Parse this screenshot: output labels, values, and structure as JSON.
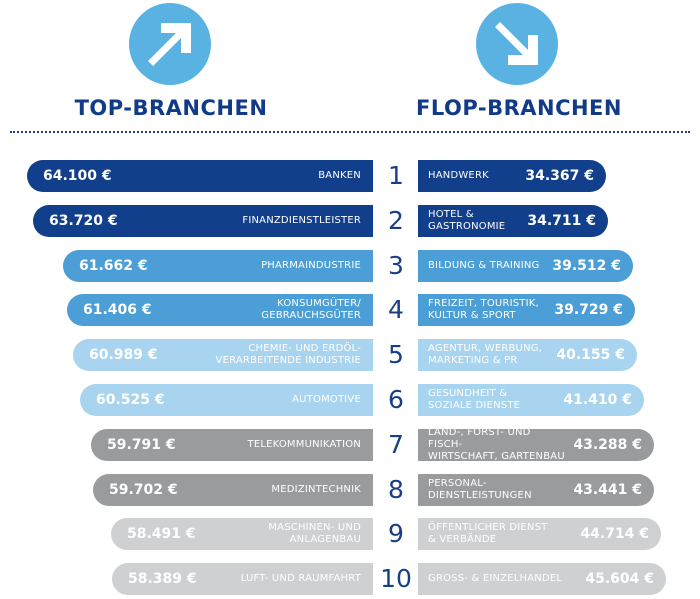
{
  "colors": {
    "arrow": "#5ab2e3",
    "heading": "#123b87",
    "divider": "#1b3f82",
    "rank": "#183f86",
    "shades": [
      "#123f8c",
      "#123f8c",
      "#4b9fd6",
      "#4b9fd6",
      "#a8d4ef",
      "#a8d4ef",
      "#9a9b9d",
      "#9a9b9d",
      "#cfd0d2",
      "#cfd0d2"
    ]
  },
  "top": {
    "icon": "arrow-up-right-icon",
    "title": "TOP-BRANCHEN"
  },
  "flop": {
    "icon": "arrow-down-right-icon",
    "title": "FLOP-BRANCHEN"
  },
  "chart_data": {
    "type": "bar",
    "currency": "€",
    "ranks": [
      "1",
      "2",
      "3",
      "4",
      "5",
      "6",
      "7",
      "8",
      "9",
      "10"
    ],
    "series": [
      {
        "name": "TOP-BRANCHEN",
        "categories": [
          [
            "BANKEN"
          ],
          [
            "FINANZDIENSTLEISTER"
          ],
          [
            "PHARMAINDUSTRIE"
          ],
          [
            "KONSUMGÜTER/",
            "GEBRAUCHSGÜTER"
          ],
          [
            "CHEMIE- UND ERDÖL-",
            "VERARBEITENDE INDUSTRIE"
          ],
          [
            "AUTOMOTIVE"
          ],
          [
            "TELEKOMMUNIKATION"
          ],
          [
            "MEDIZINTECHNIK"
          ],
          [
            "MASCHINEN- UND",
            "ANLAGENBAU"
          ],
          [
            "LUFT- UND RAUMFAHRT"
          ]
        ],
        "values": [
          64100,
          63720,
          61662,
          61406,
          60989,
          60525,
          59791,
          59702,
          58491,
          58389
        ],
        "labels": [
          "64.100 €",
          "63.720 €",
          "61.662 €",
          "61.406 €",
          "60.989 €",
          "60.525 €",
          "59.791 €",
          "59.702 €",
          "58.491 €",
          "58.389 €"
        ]
      },
      {
        "name": "FLOP-BRANCHEN",
        "categories": [
          [
            "HANDWERK"
          ],
          [
            "HOTEL &",
            "GASTRONOMIE"
          ],
          [
            "BILDUNG & TRAINING"
          ],
          [
            "FREIZEIT, TOURISTIK,",
            "KULTUR & SPORT"
          ],
          [
            "AGENTUR, WERBUNG,",
            "MARKETING & PR"
          ],
          [
            "GESUNDHEIT &",
            "SOZIALE DIENSTE"
          ],
          [
            "LAND-, FORST- UND FISCH-",
            "WIRTSCHAFT, GARTENBAU"
          ],
          [
            "PERSONAL-",
            "DIENSTLEISTUNGEN"
          ],
          [
            "ÖFFENTLICHER DIENST",
            "& VERBÄNDE"
          ],
          [
            "GROSS- & EINZELHANDEL"
          ]
        ],
        "values": [
          34367,
          34711,
          39512,
          39729,
          40155,
          41410,
          43288,
          43441,
          44714,
          45604
        ],
        "labels": [
          "34.367 €",
          "34.711 €",
          "39.512 €",
          "39.729 €",
          "40.155 €",
          "41.410 €",
          "43.288 €",
          "43.441 €",
          "44.714 €",
          "45.604 €"
        ]
      }
    ]
  }
}
